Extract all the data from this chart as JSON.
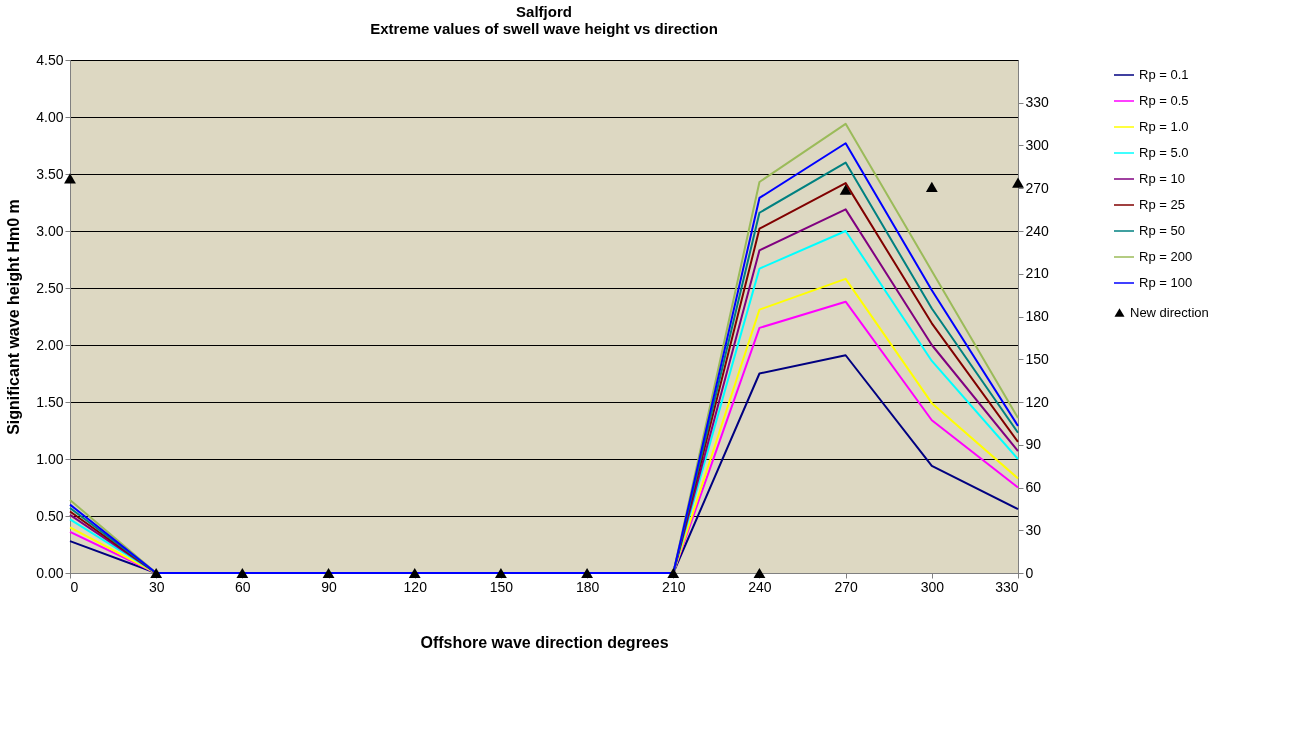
{
  "chart_data": {
    "type": "line",
    "title": "Salfjord",
    "subtitle": "Extreme values of swell wave height vs direction",
    "xlabel": "Offshore wave direction degrees",
    "ylabel": "Significant wave height Hm0 m",
    "x": [
      0,
      30,
      60,
      90,
      120,
      150,
      180,
      210,
      240,
      270,
      300,
      330
    ],
    "xlim": [
      0,
      330
    ],
    "xticks": [
      0,
      30,
      60,
      90,
      120,
      150,
      180,
      210,
      240,
      270,
      300,
      330
    ],
    "ylim": [
      0,
      4.5
    ],
    "yticks": [
      {
        "value": 0,
        "label": "0.00"
      },
      {
        "value": 0.5,
        "label": "0.50"
      },
      {
        "value": 1,
        "label": "1.00"
      },
      {
        "value": 1.5,
        "label": "1.50"
      },
      {
        "value": 2,
        "label": "2.00"
      },
      {
        "value": 2.5,
        "label": "2.50"
      },
      {
        "value": 3,
        "label": "3.00"
      },
      {
        "value": 3.5,
        "label": "3.50"
      },
      {
        "value": 4,
        "label": "4.00"
      },
      {
        "value": 4.5,
        "label": "4.50"
      }
    ],
    "y2lim": [
      0,
      360
    ],
    "y2ticks": [
      0,
      30,
      60,
      90,
      120,
      150,
      180,
      210,
      240,
      270,
      300,
      330
    ],
    "grid": "y",
    "legend": "right",
    "marker": "none",
    "line_style": "solid",
    "series": [
      {
        "name": "Rp = 0.1",
        "color": "#000080",
        "values": [
          0.28,
          0,
          0,
          0,
          0,
          0,
          0,
          0,
          1.75,
          1.91,
          0.94,
          0.56
        ]
      },
      {
        "name": "Rp = 0.5",
        "color": "#ff00ff",
        "values": [
          0.36,
          0,
          0,
          0,
          0,
          0,
          0,
          0,
          2.15,
          2.38,
          1.34,
          0.75
        ]
      },
      {
        "name": "Rp = 1.0",
        "color": "#ffff00",
        "values": [
          0.4,
          0,
          0,
          0,
          0,
          0,
          0,
          0,
          2.31,
          2.58,
          1.49,
          0.83
        ]
      },
      {
        "name": "Rp = 5.0",
        "color": "#00ffff",
        "values": [
          0.47,
          0,
          0,
          0,
          0,
          0,
          0,
          0,
          2.67,
          3.0,
          1.86,
          1.0
        ]
      },
      {
        "name": "Rp = 10",
        "color": "#800080",
        "values": [
          0.51,
          0,
          0,
          0,
          0,
          0,
          0,
          0,
          2.83,
          3.19,
          2.0,
          1.07
        ]
      },
      {
        "name": "Rp = 25",
        "color": "#800000",
        "values": [
          0.54,
          0,
          0,
          0,
          0,
          0,
          0,
          0,
          3.02,
          3.42,
          2.19,
          1.15
        ]
      },
      {
        "name": "Rp = 50",
        "color": "#008080",
        "values": [
          0.57,
          0,
          0,
          0,
          0,
          0,
          0,
          0,
          3.16,
          3.6,
          2.32,
          1.23
        ]
      },
      {
        "name": "Rp = 200",
        "color": "#9bbb59",
        "values": [
          0.64,
          0,
          0,
          0,
          0,
          0,
          0,
          0,
          3.43,
          3.94,
          2.65,
          1.36
        ]
      },
      {
        "name": "Rp = 100",
        "color": "#0000ff",
        "values": [
          0.6,
          0,
          0,
          0,
          0,
          0,
          0,
          0,
          3.29,
          3.77,
          2.48,
          1.29
        ]
      },
      {
        "name": "New direction",
        "type": "scatter",
        "marker": "triangle",
        "axis": "y2",
        "color": "#000000",
        "values": [
          277,
          0,
          0,
          0,
          0,
          0,
          0,
          0,
          0,
          269,
          271,
          274
        ]
      }
    ]
  }
}
